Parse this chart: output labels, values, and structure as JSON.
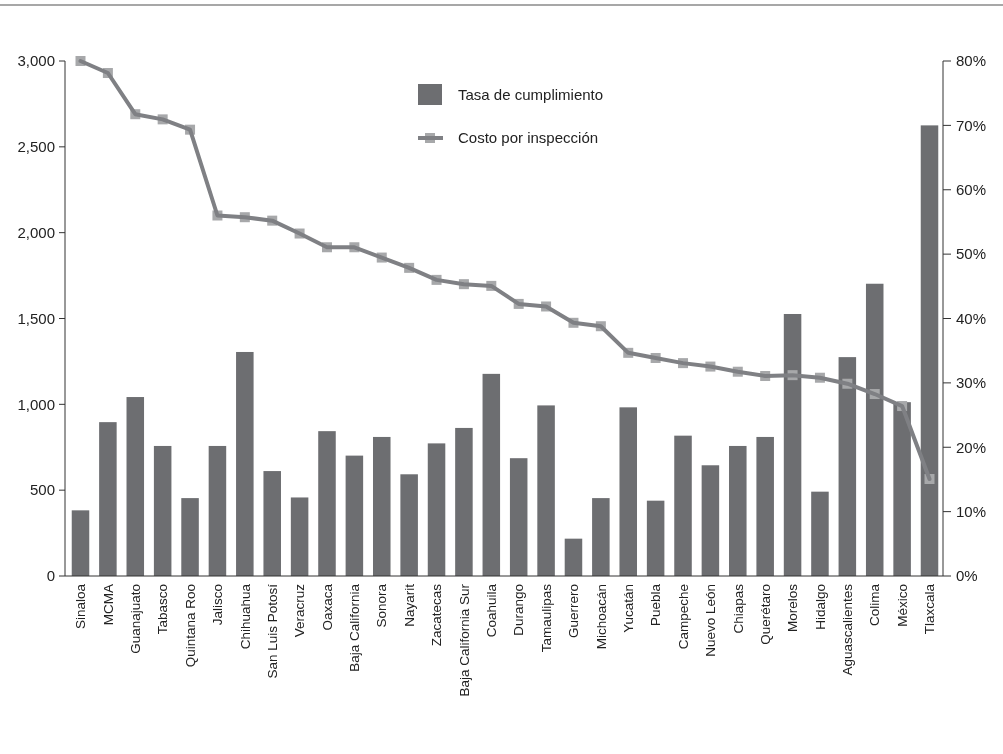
{
  "chart_data": {
    "type": "bar",
    "categories": [
      "Sinaloa",
      "MCMA",
      "Guanajuato",
      "Tabasco",
      "Quintana Roo",
      "Jalisco",
      "Chihuahua",
      "San Luis Potosí",
      "Veracruz",
      "Oaxaca",
      "Baja California",
      "Sonora",
      "Nayarit",
      "Zacatecas",
      "Baja California Sur",
      "Coahuila",
      "Durango",
      "Tamaulipas",
      "Guerrero",
      "Michoacán",
      "Yucatán",
      "Puebla",
      "Campeche",
      "Nuevo León",
      "Chiapas",
      "Querétaro",
      "Morelos",
      "Hidalgo",
      "Aguascalientes",
      "Colima",
      "México",
      "Tlaxcala"
    ],
    "series": [
      {
        "name": "Tasa de cumplimiento",
        "axis": "y2",
        "color": "#6d6e71",
        "values": [
          10.2,
          23.9,
          27.8,
          20.2,
          12.1,
          20.2,
          34.8,
          16.3,
          12.2,
          22.5,
          18.7,
          21.6,
          15.8,
          20.6,
          23.0,
          31.4,
          18.3,
          26.5,
          5.8,
          12.1,
          26.2,
          11.7,
          21.8,
          17.2,
          20.2,
          21.6,
          40.7,
          13.1,
          34.0,
          45.4,
          27.0,
          70
        ]
      },
      {
        "name": "Costo por inspección",
        "type": "line",
        "axis": "y",
        "color": "#7f8084",
        "marker": "square",
        "values": [
          3000,
          2930,
          2690,
          2660,
          2600,
          2100,
          2090,
          2070,
          1995,
          1915,
          1915,
          1855,
          1795,
          1725,
          1700,
          1690,
          1585,
          1570,
          1475,
          1455,
          1300,
          1270,
          1240,
          1220,
          1190,
          1165,
          1170,
          1155,
          1120,
          1060,
          990,
          565
        ]
      }
    ],
    "ylim": [
      0,
      3000
    ],
    "yticks": [
      0,
      500,
      {
        "value": 1000,
        "label": "1,000"
      },
      {
        "value": 1500,
        "label": "1,500"
      },
      {
        "value": 2000,
        "label": "2,000"
      },
      {
        "value": 2500,
        "label": "2,500"
      },
      {
        "value": 3000,
        "label": "3,000"
      }
    ],
    "y2lim": [
      0,
      80
    ],
    "y2ticks": [
      {
        "value": 0,
        "label": "0%"
      },
      {
        "value": 10,
        "label": "10%"
      },
      {
        "value": 20,
        "label": "20%"
      },
      {
        "value": 30,
        "label": "30%"
      },
      {
        "value": 40,
        "label": "40%"
      },
      {
        "value": 50,
        "label": "50%"
      },
      {
        "value": 60,
        "label": "60%"
      },
      {
        "value": 70,
        "label": "70%"
      },
      {
        "value": 80,
        "label": "80%"
      }
    ],
    "grid": false,
    "legend": "top"
  }
}
